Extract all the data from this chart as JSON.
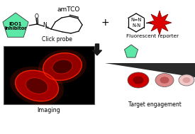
{
  "bg_color": "#ffffff",
  "pentagon_color": "#5de8a8",
  "pentagon_text": "IDO1\ninhibitor",
  "pentagon_text_color": "#000000",
  "star_color": "#dd0000",
  "click_probe_label": "Click probe",
  "fluorescent_label": "Fluorescent reporter",
  "imaging_label": "Imaging",
  "target_label": "Target engagement",
  "plus_symbol": "+",
  "arrow_color": "#2a2a2a",
  "amtco_label": "amTCO",
  "triangle_color": "#2a2a2a",
  "imaging_bg": "#000000",
  "cell_colors": [
    {
      "fill": "#cc0000",
      "nucleus": "#880000",
      "border": "#cc0000"
    },
    {
      "fill": "#e08080",
      "nucleus": "#cc4444",
      "border": "#cc8888"
    },
    {
      "fill": "#f0c0c0",
      "nucleus": "#e09090",
      "border": "#ddaaaa"
    }
  ]
}
